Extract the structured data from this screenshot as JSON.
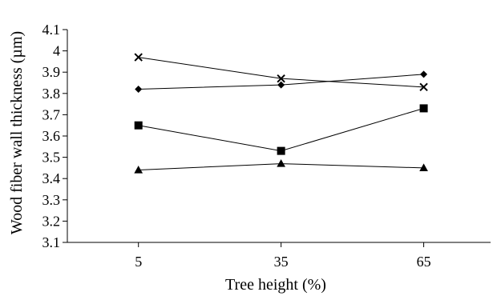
{
  "chart_data": {
    "type": "line",
    "title": "",
    "xlabel": "Tree height (%)",
    "ylabel": "Wood fiber wall thickness (µm)",
    "x": [
      5,
      35,
      65
    ],
    "x_tick_labels": [
      "5",
      "35",
      "65"
    ],
    "ylim": [
      3.1,
      4.1
    ],
    "y_ticks": [
      3.1,
      3.2,
      3.3,
      3.4,
      3.5,
      3.6,
      3.7,
      3.8,
      3.9,
      4.0,
      4.1
    ],
    "y_tick_labels": [
      "3.1",
      "3.2",
      "3.3",
      "3.4",
      "3.5",
      "3.6",
      "3.7",
      "3.8",
      "3.9",
      "4",
      "4.1"
    ],
    "grid": false,
    "legend": "none",
    "series": [
      {
        "marker": "cross",
        "values": [
          3.97,
          3.87,
          3.83
        ]
      },
      {
        "marker": "diamond",
        "values": [
          3.82,
          3.84,
          3.89
        ]
      },
      {
        "marker": "square",
        "values": [
          3.65,
          3.53,
          3.73
        ]
      },
      {
        "marker": "triangle",
        "values": [
          3.44,
          3.47,
          3.45
        ]
      }
    ]
  }
}
